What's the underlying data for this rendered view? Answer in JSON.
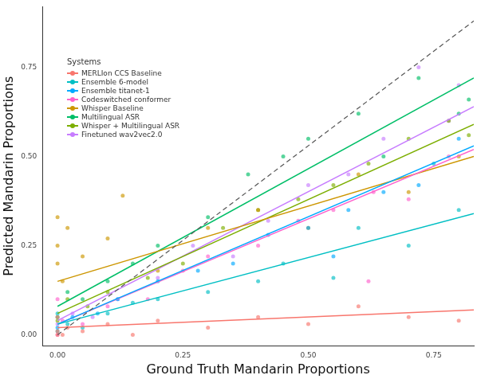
{
  "chart_data": {
    "type": "scatter",
    "x_label": "Ground Truth Mandarin Proportions",
    "y_label": "Predicted Mandarin Proportions",
    "legend_title": "Systems",
    "legend": "top-left",
    "grid": false,
    "marker": "circle",
    "xlim": [
      -0.03,
      0.83
    ],
    "ylim": [
      -0.03,
      0.92
    ],
    "xticks": [
      {
        "value": 0,
        "label": "0.00"
      },
      {
        "value": 0.25,
        "label": "0.25"
      },
      {
        "value": 0.5,
        "label": "0.50"
      },
      {
        "value": 0.75,
        "label": "0.75"
      }
    ],
    "yticks": [
      {
        "value": 0,
        "label": "0.00"
      },
      {
        "value": 0.25,
        "label": "0.25"
      },
      {
        "value": 0.5,
        "label": "0.50"
      },
      {
        "value": 0.75,
        "label": "0.75"
      }
    ],
    "series": [
      {
        "name": "MERLIon CCS Baseline",
        "color": "#F8766D",
        "x": [
          0,
          0,
          0.01,
          0.02,
          0.05,
          0.1,
          0.15,
          0.2,
          0.3,
          0.4,
          0.5,
          0.6,
          0.7,
          0.8,
          0
        ],
        "values": [
          0,
          0.01,
          0,
          0.02,
          0.01,
          0.03,
          0,
          0.04,
          0.02,
          0.05,
          0.03,
          0.08,
          0.05,
          0.04,
          0.05
        ],
        "trend": {
          "x": [
            0,
            0.83
          ],
          "values": [
            0.02,
            0.07
          ]
        }
      },
      {
        "name": "Ensemble 6-model",
        "color": "#00BFC4",
        "x": [
          0,
          0.02,
          0.05,
          0.1,
          0.15,
          0.2,
          0.3,
          0.4,
          0.45,
          0.55,
          0.6,
          0.7,
          0.8,
          0.75,
          0
        ],
        "values": [
          0.01,
          0.03,
          0.02,
          0.06,
          0.09,
          0.1,
          0.12,
          0.15,
          0.2,
          0.16,
          0.3,
          0.25,
          0.35,
          0.48,
          0.06
        ],
        "trend": {
          "x": [
            0,
            0.83
          ],
          "values": [
            0.03,
            0.34
          ]
        }
      },
      {
        "name": "Ensemble titanet-1",
        "color": "#00A9FF",
        "x": [
          0,
          0.03,
          0.08,
          0.12,
          0.2,
          0.28,
          0.35,
          0.42,
          0.5,
          0.58,
          0.65,
          0.72,
          0.8,
          0.55
        ],
        "values": [
          0.02,
          0.05,
          0.06,
          0.1,
          0.15,
          0.18,
          0.2,
          0.28,
          0.3,
          0.35,
          0.4,
          0.42,
          0.55,
          0.22
        ],
        "trend": {
          "x": [
            0,
            0.83
          ],
          "values": [
            0.03,
            0.53
          ]
        }
      },
      {
        "name": "Codeswitched conformer",
        "color": "#FF61CC",
        "x": [
          0,
          0.01,
          0.05,
          0.1,
          0.18,
          0.25,
          0.3,
          0.4,
          0.48,
          0.55,
          0.63,
          0.7,
          0.78,
          0.62,
          0
        ],
        "values": [
          0,
          0.04,
          0.03,
          0.08,
          0.1,
          0.18,
          0.22,
          0.25,
          0.32,
          0.35,
          0.4,
          0.38,
          0.5,
          0.15,
          0.1
        ],
        "trend": {
          "x": [
            0,
            0.83
          ],
          "values": [
            0.03,
            0.52
          ]
        }
      },
      {
        "name": "Whisper Baseline",
        "color": "#CD9600",
        "x": [
          0,
          0,
          0,
          0.01,
          0.05,
          0.1,
          0.13,
          0.2,
          0.3,
          0.4,
          0.5,
          0.6,
          0.7,
          0.8,
          0.02
        ],
        "values": [
          0.33,
          0.25,
          0.2,
          0.15,
          0.22,
          0.27,
          0.39,
          0.18,
          0.3,
          0.35,
          0.3,
          0.45,
          0.4,
          0.5,
          0.3
        ],
        "trend": {
          "x": [
            0,
            0.83
          ],
          "values": [
            0.15,
            0.5
          ]
        }
      },
      {
        "name": "Multilingual ASR",
        "color": "#00BE67",
        "x": [
          0,
          0.02,
          0.05,
          0.1,
          0.15,
          0.2,
          0.3,
          0.38,
          0.45,
          0.5,
          0.6,
          0.65,
          0.72,
          0.8,
          0.82
        ],
        "values": [
          0.05,
          0.12,
          0.1,
          0.15,
          0.2,
          0.25,
          0.33,
          0.45,
          0.5,
          0.55,
          0.62,
          0.5,
          0.72,
          0.62,
          0.66
        ],
        "trend": {
          "x": [
            0,
            0.83
          ],
          "values": [
            0.08,
            0.72
          ]
        }
      },
      {
        "name": "Whisper + Multilingual ASR",
        "color": "#7CAE00",
        "x": [
          0,
          0.02,
          0.06,
          0.1,
          0.18,
          0.25,
          0.33,
          0.4,
          0.48,
          0.55,
          0.62,
          0.7,
          0.78,
          0.82
        ],
        "values": [
          0.04,
          0.1,
          0.08,
          0.12,
          0.16,
          0.2,
          0.3,
          0.35,
          0.38,
          0.42,
          0.48,
          0.55,
          0.6,
          0.56
        ],
        "trend": {
          "x": [
            0,
            0.83
          ],
          "values": [
            0.06,
            0.59
          ]
        }
      },
      {
        "name": "Finetuned wav2vec2.0",
        "color": "#C77CFF",
        "x": [
          0,
          0.03,
          0.07,
          0.12,
          0.2,
          0.27,
          0.35,
          0.42,
          0.5,
          0.58,
          0.65,
          0.72,
          0.78,
          0.8
        ],
        "values": [
          0.03,
          0.06,
          0.05,
          0.1,
          0.16,
          0.25,
          0.22,
          0.32,
          0.42,
          0.45,
          0.55,
          0.75,
          0.6,
          0.7
        ],
        "trend": {
          "x": [
            0,
            0.83
          ],
          "values": [
            0.04,
            0.64
          ]
        }
      },
      {
        "type": "line",
        "line_style": "dashed",
        "color": "#555555",
        "x": [
          0,
          0.83
        ],
        "values": [
          0,
          0.88
        ]
      }
    ]
  }
}
